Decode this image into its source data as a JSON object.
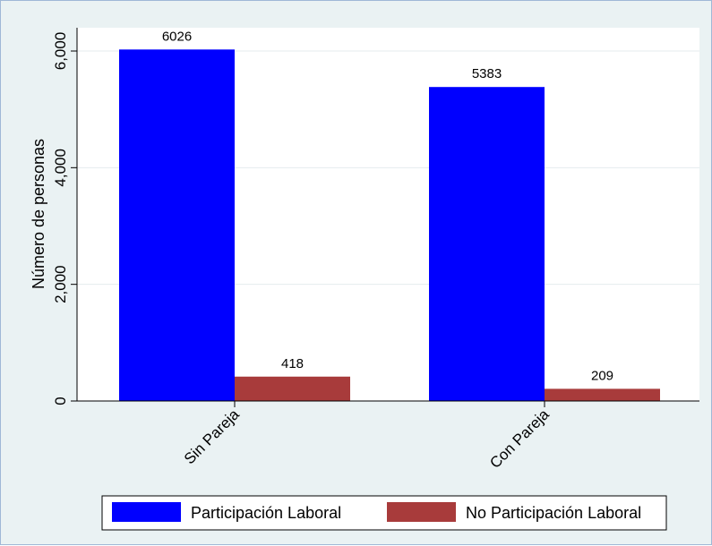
{
  "chart_data": {
    "type": "bar",
    "categories": [
      "Sin Pareja",
      "Con Pareja"
    ],
    "series": [
      {
        "name": "Participación Laboral",
        "values": [
          6026,
          5383
        ],
        "color": "#0000ff"
      },
      {
        "name": "No Participación Laboral",
        "values": [
          418,
          209
        ],
        "color": "#a83b3b"
      }
    ],
    "ylabel": "Número de personas",
    "yticks": [
      0,
      2000,
      4000,
      6000
    ],
    "ytick_labels": [
      "0",
      "2,000",
      "4,000",
      "6,000"
    ],
    "ylim": [
      0,
      6000
    ],
    "grid": true,
    "legend_position": "bottom"
  }
}
